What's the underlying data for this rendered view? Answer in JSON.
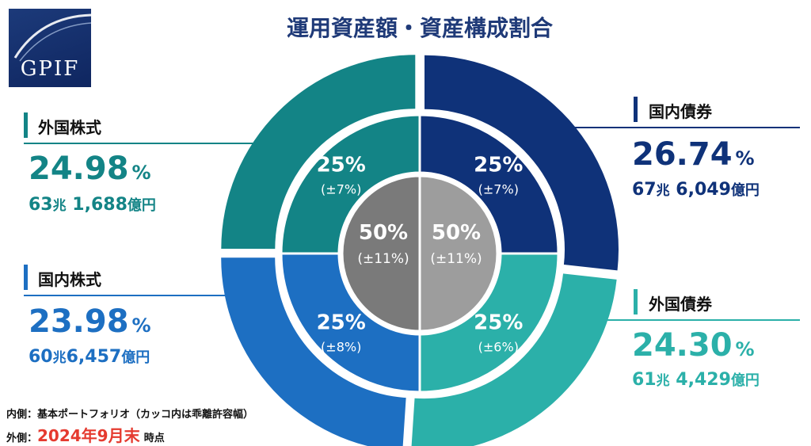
{
  "logo": {
    "text": "GPIF"
  },
  "title": "運用資産額・資産構成割合",
  "colors": {
    "domestic_bonds": "#0f3279",
    "foreign_bonds": "#2bb0a9",
    "domestic_stocks": "#1d6fc2",
    "foreign_stocks": "#138486",
    "center_left": "#7a7a7a",
    "center_right": "#9d9d9d",
    "title": "#1f3a78",
    "accent_red": "#e53a2f"
  },
  "chart_data": {
    "type": "pie",
    "title": "運用資産額・資産構成割合",
    "outer_ring": {
      "label": "2024年9月末 時点",
      "slices": [
        {
          "name": "国内債券",
          "percent": 26.74,
          "percent_text": "26.74",
          "amount": "67兆6,049億円",
          "amount_parts": [
            "67",
            "兆",
            "6,049",
            "億円"
          ],
          "color": "#0f3279"
        },
        {
          "name": "外国債券",
          "percent": 24.3,
          "percent_text": "24.30",
          "amount": "61兆4,429億円",
          "amount_parts": [
            "61",
            "兆",
            "4,429",
            "億円"
          ],
          "color": "#2bb0a9"
        },
        {
          "name": "国内株式",
          "percent": 23.98,
          "percent_text": "23.98",
          "amount": "60兆6,457億円",
          "amount_parts": [
            "60",
            "兆",
            "6,457",
            "億円"
          ],
          "color": "#1d6fc2"
        },
        {
          "name": "外国株式",
          "percent": 24.98,
          "percent_text": "24.98",
          "amount": "63兆1,688億円",
          "amount_parts": [
            "63",
            "兆",
            "1,688",
            "億円"
          ],
          "color": "#138486"
        }
      ]
    },
    "inner_ring": {
      "label": "基本ポートフォリオ",
      "slices": [
        {
          "name": "国内債券",
          "target_percent": 25,
          "target_text": "25%",
          "range_text": "(±7%)",
          "color": "#0f3279"
        },
        {
          "name": "外国債券",
          "target_percent": 25,
          "target_text": "25%",
          "range_text": "(±6%)",
          "color": "#2bb0a9"
        },
        {
          "name": "国内株式",
          "target_percent": 25,
          "target_text": "25%",
          "range_text": "(±8%)",
          "color": "#1d6fc2"
        },
        {
          "name": "外国株式",
          "target_percent": 25,
          "target_text": "25%",
          "range_text": "(±7%)",
          "color": "#138486"
        }
      ]
    },
    "center": {
      "left": {
        "target_text": "50%",
        "range_text": "(±11%)",
        "color": "#7a7a7a"
      },
      "right": {
        "target_text": "50%",
        "range_text": "(±11%)",
        "color": "#9d9d9d"
      }
    }
  },
  "percent_unit": "%",
  "footnotes": {
    "inner": "内側：基本ポートフォリオ（カッコ内は乖離許容幅）",
    "outer_prefix": "外側：",
    "outer_date": "2024年9月末",
    "outer_suffix": "時点"
  }
}
